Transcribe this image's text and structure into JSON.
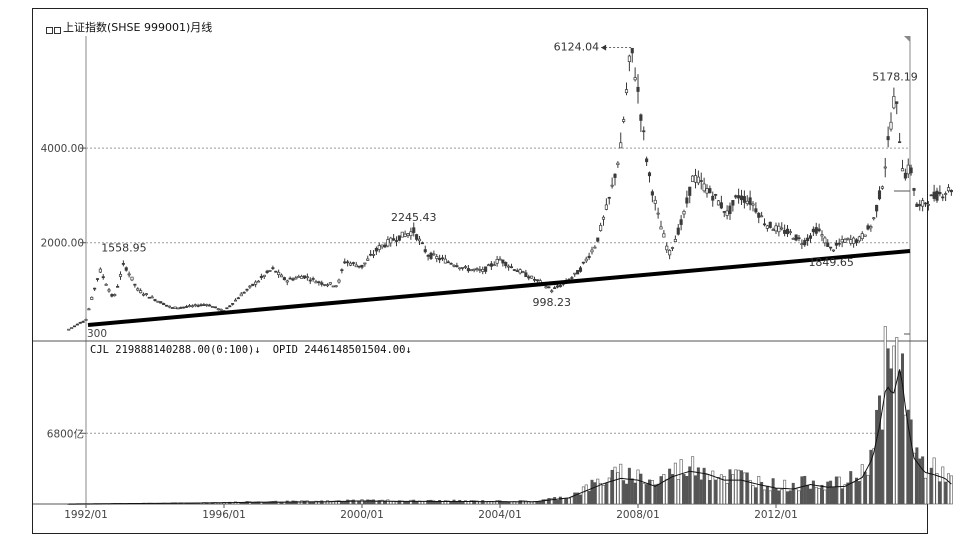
{
  "header": {
    "title": "上证指数(SHSE 999001)月线"
  },
  "volume_header": {
    "cjl": "CJL  219888140288.00(0:100)↓",
    "opid": "OPID  2446148501504.00↓"
  },
  "colors": {
    "candle": "#3a3a3a",
    "grid": "#9a9a9a",
    "trendline": "#000000",
    "bars": "#555555"
  },
  "chart_data": [
    {
      "type": "line",
      "title": "上证指数(SHSE 999001)月线",
      "ytick_labels": [
        "4000.00",
        "2000.00",
        "300"
      ],
      "yticks": [
        4000,
        2000
      ],
      "ylim": [
        0,
        6500
      ],
      "xtick_labels": [
        "1992/01",
        "1996/01",
        "2000/01",
        "2004/01",
        "2008/01",
        "2012/01"
      ],
      "series": [
        {
          "values_x": [
            1991.5,
            1992.0,
            1992.4,
            1992.8,
            1993.1,
            1993.5,
            1994.0,
            1994.5,
            1995.0,
            1995.5,
            1996.0,
            1996.5,
            1997.0,
            1997.4,
            1997.8,
            1998.3,
            1998.8,
            1999.3,
            1999.5,
            2000.0,
            2000.5,
            2001.0,
            2001.5,
            2001.9,
            2002.3,
            2002.7,
            2003.0,
            2003.5,
            2004.0,
            2004.3,
            2004.8,
            2005.2,
            2005.5,
            2005.9,
            2006.3,
            2006.8,
            2007.2,
            2007.5,
            2007.8,
            2008.0,
            2008.3,
            2008.6,
            2008.9,
            2009.3,
            2009.6,
            2009.9,
            2010.3,
            2010.6,
            2010.9,
            2011.3,
            2011.7,
            2012.0,
            2012.4,
            2012.8,
            2013.2,
            2013.6,
            2014.0,
            2014.4,
            2014.8,
            2015.1,
            2015.45,
            2015.7,
            2015.9,
            2016.1,
            2016.4,
            2016.8,
            2017.1
          ],
          "values": [
            170,
            380,
            1430,
            800,
            1558.95,
            1000,
            800,
            620,
            650,
            700,
            550,
            900,
            1200,
            1450,
            1200,
            1300,
            1150,
            1100,
            1600,
            1500,
            1900,
            2100,
            2245.43,
            1750,
            1650,
            1550,
            1450,
            1400,
            1650,
            1500,
            1300,
            1150,
            998.23,
            1150,
            1400,
            2000,
            3000,
            4000,
            6124.04,
            5200,
            3500,
            2500,
            1750,
            2500,
            3400,
            3200,
            2900,
            2600,
            3000,
            2850,
            2400,
            2300,
            2200,
            2000,
            2300,
            1849.65,
            2050,
            2050,
            2400,
            3300,
            5178.19,
            3400,
            3600,
            2700,
            2900,
            3050,
            3150
          ]
        }
      ],
      "annotations": [
        "1558.95",
        "2245.43",
        "998.23",
        "6124.04",
        "5178.19",
        "1849.65"
      ],
      "grid": true,
      "trendline": true
    },
    {
      "type": "bar",
      "ytick_labels": [
        "6800亿"
      ],
      "yticks": [
        6800
      ],
      "ylim": [
        0,
        16000
      ],
      "series": [
        {
          "values_x": [
            1991.5,
            1995.0,
            1997.0,
            1999.0,
            2000.0,
            2001.0,
            2003.0,
            2005.0,
            2006.0,
            2006.5,
            2007.0,
            2007.5,
            2008.0,
            2008.5,
            2009.0,
            2009.5,
            2010.0,
            2010.5,
            2011.0,
            2011.5,
            2012.0,
            2012.5,
            2013.0,
            2013.5,
            2014.0,
            2014.5,
            2014.8,
            2015.0,
            2015.2,
            2015.4,
            2015.6,
            2015.8,
            2016.0,
            2016.3,
            2016.6,
            2016.9,
            2017.1
          ],
          "values": [
            0,
            100,
            200,
            250,
            350,
            300,
            280,
            250,
            700,
            1500,
            2300,
            2900,
            2700,
            2000,
            3100,
            3700,
            3400,
            2700,
            2700,
            2200,
            1800,
            1700,
            2200,
            1900,
            2000,
            3000,
            5200,
            8800,
            13500,
            12300,
            15500,
            9500,
            5200,
            3600,
            3300,
            2900,
            2200
          ]
        }
      ]
    }
  ]
}
